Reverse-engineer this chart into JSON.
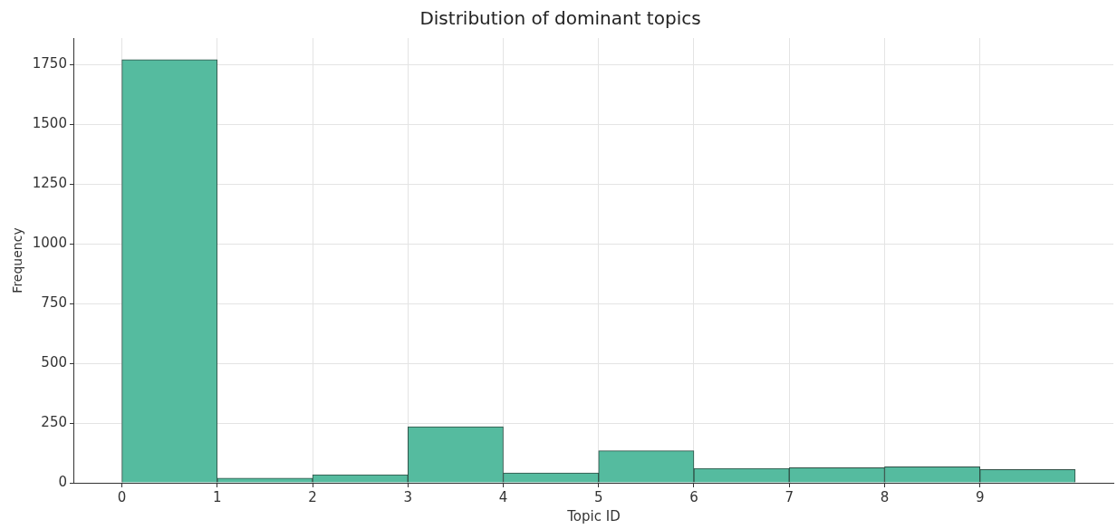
{
  "chart_data": {
    "type": "histogram",
    "title": "Distribution of dominant topics",
    "xlabel": "Topic ID",
    "ylabel": "Frequency",
    "bins": [
      0,
      1,
      2,
      3,
      4,
      5,
      6,
      7,
      8,
      9,
      10
    ],
    "values": [
      1770,
      20,
      34,
      235,
      41,
      134,
      60,
      63,
      67,
      56
    ],
    "color": "#55bb9f",
    "xlim": [
      -0.5,
      10.4
    ],
    "xticks": [
      0,
      1,
      2,
      3,
      4,
      5,
      6,
      7,
      8,
      9
    ],
    "ylim": [
      0,
      1860
    ],
    "yticks": [
      0,
      250,
      500,
      750,
      1000,
      1250,
      1500,
      1750
    ],
    "grid": true
  }
}
